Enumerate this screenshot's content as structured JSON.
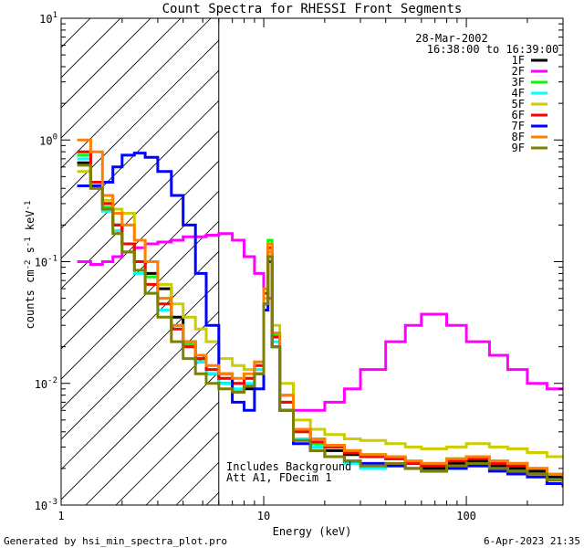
{
  "chart_data": {
    "type": "line",
    "title": "Count Spectra for RHESSI Front Segments",
    "xlabel": "Energy (keV)",
    "ylabel_parts": {
      "a": "counts cm",
      "b": "-2",
      "c": " s",
      "d": "-1",
      "e": " keV",
      "f": "-1"
    },
    "xscale": "log",
    "yscale": "log",
    "xlim": [
      1,
      300
    ],
    "ylim": [
      0.001,
      10
    ],
    "xticks": [
      {
        "v": 1,
        "label": "1"
      },
      {
        "v": 10,
        "label": "10"
      },
      {
        "v": 100,
        "label": "100"
      }
    ],
    "yticks": [
      {
        "v": 0.001,
        "base": "10",
        "exp": "-3"
      },
      {
        "v": 0.01,
        "base": "10",
        "exp": "-2"
      },
      {
        "v": 0.1,
        "base": "10",
        "exp": "-1"
      },
      {
        "v": 1,
        "base": "10",
        "exp": "0"
      },
      {
        "v": 10,
        "base": "10",
        "exp": "1"
      }
    ],
    "shaded_region_kev": [
      1,
      6
    ],
    "legend_placement": "top-right",
    "date": "28-Mar-2002",
    "time_range": "16:38:00 to 16:39:00",
    "annotations": [
      "Includes Background",
      "Att A1, FDecim 1"
    ],
    "footer_left": "Generated by hsi_min_spectra_plot.pro",
    "footer_right": "6-Apr-2023 21:35",
    "series": [
      {
        "name": "1F",
        "color": "#000000",
        "x": [
          1.2,
          1.4,
          1.6,
          1.8,
          2.0,
          2.3,
          2.6,
          3.0,
          3.5,
          4.0,
          4.6,
          5.2,
          6.0,
          7.0,
          8.0,
          9.0,
          10.0,
          10.5,
          11.0,
          12.0,
          14,
          17,
          20,
          25,
          30,
          40,
          50,
          60,
          80,
          100,
          130,
          160,
          200,
          250,
          300
        ],
        "y": [
          0.65,
          0.45,
          0.3,
          0.2,
          0.14,
          0.1,
          0.08,
          0.06,
          0.035,
          0.022,
          0.015,
          0.012,
          0.01,
          0.0085,
          0.009,
          0.012,
          0.045,
          0.1,
          0.02,
          0.006,
          0.0035,
          0.003,
          0.0028,
          0.0026,
          0.0025,
          0.0024,
          0.0022,
          0.002,
          0.0022,
          0.0023,
          0.0021,
          0.002,
          0.0019,
          0.0017,
          0.0016
        ]
      },
      {
        "name": "2F",
        "color": "#ff00ff",
        "x": [
          1.2,
          1.4,
          1.6,
          1.8,
          2.0,
          2.3,
          2.6,
          3.0,
          3.5,
          4.0,
          4.6,
          5.2,
          6.0,
          7.0,
          8.0,
          9.0,
          10.0,
          10.5,
          11.0,
          12.0,
          14,
          17,
          20,
          25,
          30,
          40,
          50,
          60,
          80,
          100,
          130,
          160,
          200,
          250,
          300
        ],
        "y": [
          0.1,
          0.095,
          0.1,
          0.11,
          0.12,
          0.13,
          0.14,
          0.145,
          0.15,
          0.16,
          0.16,
          0.165,
          0.17,
          0.15,
          0.11,
          0.08,
          0.06,
          0.05,
          0.02,
          0.008,
          0.006,
          0.006,
          0.007,
          0.009,
          0.013,
          0.022,
          0.03,
          0.037,
          0.03,
          0.022,
          0.017,
          0.013,
          0.01,
          0.009,
          0.009
        ]
      },
      {
        "name": "3F",
        "color": "#00ff00",
        "x": [
          1.2,
          1.4,
          1.6,
          1.8,
          2.0,
          2.3,
          2.6,
          3.0,
          3.5,
          4.0,
          4.6,
          5.2,
          6.0,
          7.0,
          8.0,
          9.0,
          10.0,
          10.5,
          11.0,
          12.0,
          14,
          17,
          20,
          25,
          30,
          40,
          50,
          60,
          80,
          100,
          130,
          160,
          200,
          250,
          300
        ],
        "y": [
          0.75,
          0.45,
          0.28,
          0.2,
          0.14,
          0.1,
          0.075,
          0.05,
          0.03,
          0.021,
          0.016,
          0.013,
          0.011,
          0.01,
          0.011,
          0.014,
          0.06,
          0.15,
          0.025,
          0.007,
          0.004,
          0.0032,
          0.003,
          0.0028,
          0.0026,
          0.0025,
          0.0023,
          0.0022,
          0.0024,
          0.0025,
          0.0023,
          0.0022,
          0.002,
          0.0018,
          0.0017
        ]
      },
      {
        "name": "4F",
        "color": "#00ffff",
        "x": [
          1.2,
          1.4,
          1.6,
          1.8,
          2.0,
          2.3,
          2.6,
          3.0,
          3.5,
          4.0,
          4.6,
          5.2,
          6.0,
          7.0,
          8.0,
          9.0,
          10.0,
          10.5,
          11.0,
          12.0,
          14,
          17,
          20,
          25,
          30,
          40,
          50,
          60,
          80,
          100,
          130,
          160,
          200,
          250,
          300
        ],
        "y": [
          0.7,
          0.4,
          0.26,
          0.18,
          0.12,
          0.08,
          0.055,
          0.04,
          0.028,
          0.02,
          0.015,
          0.012,
          0.01,
          0.009,
          0.01,
          0.013,
          0.05,
          0.12,
          0.022,
          0.006,
          0.0035,
          0.003,
          0.0025,
          0.0022,
          0.002,
          0.0021,
          0.002,
          0.0019,
          0.002,
          0.0021,
          0.002,
          0.0019,
          0.0018,
          0.0016,
          0.0015
        ]
      },
      {
        "name": "5F",
        "color": "#cccc00",
        "x": [
          1.2,
          1.4,
          1.6,
          1.8,
          2.0,
          2.3,
          2.6,
          3.0,
          3.5,
          4.0,
          4.6,
          5.2,
          6.0,
          7.0,
          8.0,
          9.0,
          10.0,
          10.5,
          11.0,
          12.0,
          14,
          17,
          20,
          25,
          30,
          40,
          50,
          60,
          80,
          100,
          130,
          160,
          200,
          250,
          300
        ],
        "y": [
          0.55,
          0.42,
          0.32,
          0.27,
          0.25,
          0.15,
          0.1,
          0.065,
          0.045,
          0.035,
          0.028,
          0.022,
          0.016,
          0.014,
          0.013,
          0.015,
          0.05,
          0.12,
          0.03,
          0.01,
          0.005,
          0.0042,
          0.0038,
          0.0035,
          0.0034,
          0.0032,
          0.003,
          0.0029,
          0.003,
          0.0032,
          0.003,
          0.0029,
          0.0027,
          0.0025,
          0.0024
        ]
      },
      {
        "name": "6F",
        "color": "#ff0000",
        "x": [
          1.2,
          1.4,
          1.6,
          1.8,
          2.0,
          2.3,
          2.6,
          3.0,
          3.5,
          4.0,
          4.6,
          5.2,
          6.0,
          7.0,
          8.0,
          9.0,
          10.0,
          10.5,
          11.0,
          12.0,
          14,
          17,
          20,
          25,
          30,
          40,
          50,
          60,
          80,
          100,
          130,
          160,
          200,
          250,
          300
        ],
        "y": [
          0.8,
          0.45,
          0.3,
          0.2,
          0.14,
          0.1,
          0.065,
          0.045,
          0.028,
          0.02,
          0.016,
          0.013,
          0.011,
          0.01,
          0.011,
          0.014,
          0.055,
          0.13,
          0.024,
          0.007,
          0.004,
          0.0033,
          0.003,
          0.0027,
          0.0025,
          0.0024,
          0.0022,
          0.0021,
          0.0023,
          0.0024,
          0.0022,
          0.0021,
          0.002,
          0.0018,
          0.0017
        ]
      },
      {
        "name": "7F",
        "color": "#0000ff",
        "x": [
          1.2,
          1.4,
          1.6,
          1.8,
          2.0,
          2.3,
          2.6,
          3.0,
          3.5,
          4.0,
          4.6,
          5.2,
          6.0,
          7.0,
          8.0,
          9.0,
          10.0,
          10.5,
          11.0,
          12.0,
          14,
          17,
          20,
          25,
          30,
          40,
          50,
          60,
          80,
          100,
          130,
          160,
          200,
          250,
          300
        ],
        "y": [
          0.42,
          0.42,
          0.45,
          0.6,
          0.75,
          0.78,
          0.72,
          0.55,
          0.35,
          0.2,
          0.08,
          0.03,
          0.012,
          0.007,
          0.006,
          0.009,
          0.04,
          0.1,
          0.02,
          0.006,
          0.0032,
          0.0028,
          0.0025,
          0.0023,
          0.0022,
          0.0021,
          0.002,
          0.0019,
          0.002,
          0.0021,
          0.0019,
          0.0018,
          0.0017,
          0.0015,
          0.0014
        ]
      },
      {
        "name": "8F",
        "color": "#ff8000",
        "x": [
          1.2,
          1.4,
          1.6,
          1.8,
          2.0,
          2.3,
          2.6,
          3.0,
          3.5,
          4.0,
          4.6,
          5.2,
          6.0,
          7.0,
          8.0,
          9.0,
          10.0,
          10.5,
          11.0,
          12.0,
          14,
          17,
          20,
          25,
          30,
          40,
          50,
          60,
          80,
          100,
          130,
          160,
          200,
          250,
          300
        ],
        "y": [
          1.0,
          0.8,
          0.35,
          0.25,
          0.2,
          0.15,
          0.1,
          0.05,
          0.03,
          0.022,
          0.017,
          0.014,
          0.012,
          0.011,
          0.012,
          0.015,
          0.06,
          0.14,
          0.026,
          0.008,
          0.0042,
          0.0035,
          0.0031,
          0.0028,
          0.0026,
          0.0025,
          0.0023,
          0.0022,
          0.0024,
          0.0025,
          0.0023,
          0.0022,
          0.002,
          0.0018,
          0.0017
        ]
      },
      {
        "name": "9F",
        "color": "#808000",
        "x": [
          1.2,
          1.4,
          1.6,
          1.8,
          2.0,
          2.3,
          2.6,
          3.0,
          3.5,
          4.0,
          4.6,
          5.2,
          6.0,
          7.0,
          8.0,
          9.0,
          10.0,
          10.5,
          11.0,
          12.0,
          14,
          17,
          20,
          25,
          30,
          40,
          50,
          60,
          80,
          100,
          130,
          160,
          200,
          250,
          300
        ],
        "y": [
          0.62,
          0.4,
          0.27,
          0.17,
          0.12,
          0.085,
          0.055,
          0.035,
          0.022,
          0.016,
          0.012,
          0.01,
          0.009,
          0.0085,
          0.0095,
          0.012,
          0.045,
          0.11,
          0.02,
          0.006,
          0.0034,
          0.0028,
          0.0025,
          0.0023,
          0.0021,
          0.0022,
          0.002,
          0.0019,
          0.0021,
          0.0022,
          0.002,
          0.0019,
          0.0018,
          0.0016,
          0.0015
        ]
      }
    ]
  }
}
